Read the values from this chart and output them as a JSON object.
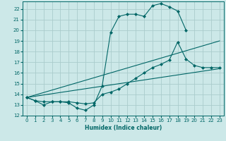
{
  "xlabel": "Humidex (Indice chaleur)",
  "bg_color": "#cce8e8",
  "grid_color": "#aacccc",
  "line_color": "#006666",
  "xlim": [
    -0.5,
    23.5
  ],
  "ylim": [
    12,
    22.7
  ],
  "yticks": [
    12,
    13,
    14,
    15,
    16,
    17,
    18,
    19,
    20,
    21,
    22
  ],
  "xticks": [
    0,
    1,
    2,
    3,
    4,
    5,
    6,
    7,
    8,
    9,
    10,
    11,
    12,
    13,
    14,
    15,
    16,
    17,
    18,
    19,
    20,
    21,
    22,
    23
  ],
  "curve1_x": [
    0,
    1,
    2,
    3,
    4,
    5,
    6,
    7,
    8,
    9,
    10,
    11,
    12,
    13,
    14,
    15,
    16,
    17,
    18,
    19
  ],
  "curve1_y": [
    13.7,
    13.4,
    13.0,
    13.3,
    13.3,
    13.2,
    12.7,
    12.5,
    13.0,
    14.8,
    19.8,
    21.3,
    21.5,
    21.5,
    21.3,
    22.3,
    22.5,
    22.2,
    21.8,
    20.0
  ],
  "line2_x": [
    0,
    23
  ],
  "line2_y": [
    13.7,
    19.0
  ],
  "line3_x": [
    0,
    23
  ],
  "line3_y": [
    13.7,
    16.4
  ],
  "curve4_x": [
    0,
    1,
    2,
    3,
    4,
    5,
    6,
    7,
    8,
    9,
    10,
    11,
    12,
    13,
    14,
    15,
    16,
    17,
    18,
    19,
    20,
    21,
    22,
    23
  ],
  "curve4_y": [
    13.7,
    13.4,
    13.3,
    13.3,
    13.3,
    13.3,
    13.2,
    13.1,
    13.2,
    14.0,
    14.2,
    14.5,
    15.0,
    15.5,
    16.0,
    16.5,
    16.8,
    17.2,
    18.9,
    17.3,
    16.7,
    16.5,
    16.5,
    16.5
  ]
}
